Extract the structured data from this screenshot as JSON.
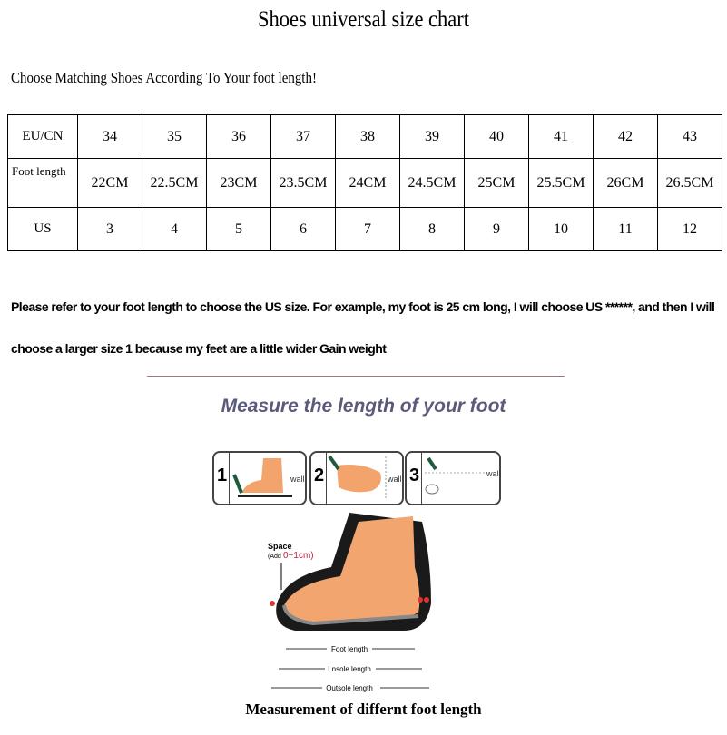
{
  "title": "Shoes universal size chart",
  "subtitle": "Choose Matching Shoes According To Your foot length!",
  "table": {
    "rows": [
      {
        "label": "EU/CN",
        "values": [
          "34",
          "35",
          "36",
          "37",
          "38",
          "39",
          "40",
          "41",
          "42",
          "43"
        ]
      },
      {
        "label": "Foot length",
        "values": [
          "22CM",
          "22.5CM",
          "23CM",
          "23.5CM",
          "24CM",
          "24.5CM",
          "25CM",
          "25.5CM",
          "26CM",
          "26.5CM"
        ]
      },
      {
        "label": "US",
        "values": [
          "3",
          "4",
          "5",
          "6",
          "7",
          "8",
          "9",
          "10",
          "11",
          "12"
        ]
      }
    ]
  },
  "note": {
    "line1": "Please refer to your foot length to choose the US size. For example, my foot is 25 cm long, I will choose US ******, and then I will",
    "line2": "choose a larger size 1 because my feet are a little wider Gain weight"
  },
  "measure_heading": "Measure the length of your foot",
  "steps": [
    {
      "num": "1",
      "wall": "wall"
    },
    {
      "num": "2",
      "wall": "wall"
    },
    {
      "num": "3",
      "wall": "wall"
    }
  ],
  "diagram": {
    "space": "Space",
    "space_add": "(Add",
    "space_range": "0~1cm)",
    "foot_length": "Foot length",
    "insole_length": "Lnsole length",
    "outsole_length": "Outsole length"
  },
  "caption": "Measurement of differnt foot length"
}
